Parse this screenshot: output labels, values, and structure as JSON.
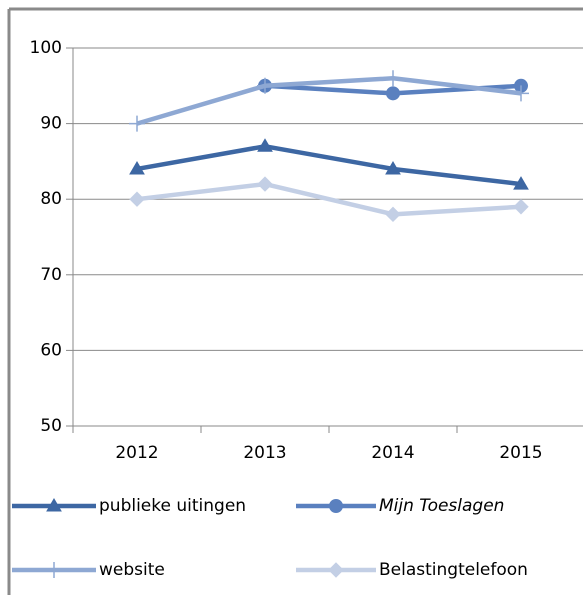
{
  "chart_data": {
    "type": "line",
    "categories": [
      "2012",
      "2013",
      "2014",
      "2015"
    ],
    "series": [
      {
        "name": "publieke uitingen",
        "color": "#3d67a3",
        "marker": "triangle",
        "values": [
          84,
          87,
          84,
          82
        ]
      },
      {
        "name": "Mijn Toeslagen",
        "color": "#5a80bf",
        "marker": "circle",
        "italic": true,
        "values": [
          null,
          95,
          94,
          95
        ]
      },
      {
        "name": "website",
        "color": "#8ea8d3",
        "marker": "plus",
        "values": [
          90,
          95,
          96,
          94
        ]
      },
      {
        "name": "Belastingtelefoon",
        "color": "#c3cfe5",
        "marker": "diamond",
        "values": [
          80,
          82,
          78,
          79
        ]
      }
    ],
    "ylim": [
      50,
      100
    ],
    "yticks": [
      50,
      60,
      70,
      80,
      90,
      100
    ],
    "grid": true,
    "legend": "bottom"
  }
}
